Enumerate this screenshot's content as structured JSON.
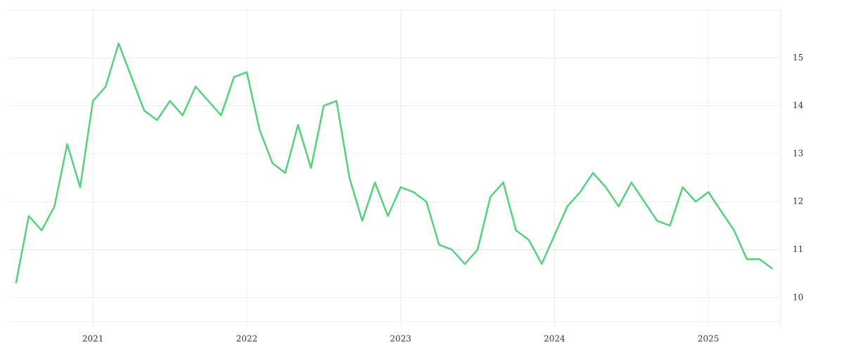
{
  "chart_data": {
    "type": "line",
    "x": [
      2020.5,
      2020.583,
      2020.667,
      2020.75,
      2020.833,
      2020.917,
      2021,
      2021.083,
      2021.167,
      2021.25,
      2021.333,
      2021.417,
      2021.5,
      2021.583,
      2021.667,
      2021.75,
      2021.833,
      2021.917,
      2022,
      2022.083,
      2022.167,
      2022.25,
      2022.333,
      2022.417,
      2022.5,
      2022.583,
      2022.667,
      2022.75,
      2022.833,
      2022.917,
      2023,
      2023.083,
      2023.167,
      2023.25,
      2023.333,
      2023.417,
      2023.5,
      2023.583,
      2023.667,
      2023.75,
      2023.833,
      2023.917,
      2024,
      2024.083,
      2024.167,
      2024.25,
      2024.333,
      2024.417,
      2024.5,
      2024.583,
      2024.667,
      2024.75,
      2024.833,
      2024.917,
      2025,
      2025.083,
      2025.167,
      2025.25,
      2025.333,
      2025.417
    ],
    "values": [
      10.3,
      11.7,
      11.4,
      11.9,
      13.2,
      12.3,
      14.1,
      14.4,
      15.3,
      14.6,
      13.9,
      13.7,
      14.1,
      13.8,
      14.4,
      14.1,
      13.8,
      14.6,
      14.7,
      13.5,
      12.8,
      12.6,
      13.6,
      12.7,
      14.0,
      14.1,
      12.5,
      11.6,
      12.4,
      11.7,
      12.3,
      12.2,
      12.0,
      11.1,
      11.0,
      10.7,
      11.0,
      12.1,
      12.4,
      11.4,
      11.2,
      10.7,
      11.3,
      11.9,
      12.2,
      12.6,
      12.3,
      11.9,
      12.4,
      12.0,
      11.6,
      11.5,
      12.3,
      12.0,
      12.2,
      11.8,
      11.4,
      10.8,
      10.8,
      10.6
    ],
    "color": "#54d27b",
    "xlim": [
      2020.46,
      2025.47
    ],
    "xticks": [
      2021,
      2022,
      2023,
      2024,
      2025
    ],
    "ylim": [
      9.5,
      16
    ],
    "yticks": [
      10,
      11,
      12,
      13,
      14,
      15
    ],
    "grid": true
  }
}
